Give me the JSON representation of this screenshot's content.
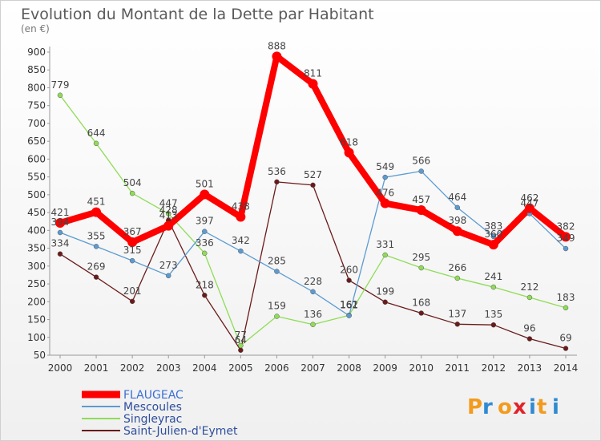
{
  "chart_data": {
    "type": "line",
    "title": "Evolution du Montant de la Dette par Habitant",
    "subtitle": "(en €)",
    "x": [
      "2000",
      "2001",
      "2002",
      "2003",
      "2004",
      "2005",
      "2006",
      "2007",
      "2008",
      "2009",
      "2010",
      "2011",
      "2012",
      "2013",
      "2014"
    ],
    "ylim": [
      50,
      900
    ],
    "yticks": [
      50,
      100,
      150,
      200,
      250,
      300,
      350,
      400,
      450,
      500,
      550,
      600,
      650,
      700,
      750,
      800,
      850,
      900
    ],
    "grid": false,
    "legend": "bottom-left",
    "series": [
      {
        "name": "FLAUGEAC",
        "color": "#ff0000",
        "values": [
          421,
          451,
          367,
          413,
          501,
          438,
          888,
          811,
          618,
          476,
          457,
          398,
          360,
          462,
          382
        ]
      },
      {
        "name": "Mescoules",
        "color": "#5c9bd1",
        "values": [
          394,
          355,
          315,
          273,
          397,
          342,
          285,
          228,
          161,
          549,
          566,
          464,
          383,
          447,
          349
        ]
      },
      {
        "name": "Singleyrac",
        "color": "#8fdc56",
        "values": [
          779,
          644,
          504,
          447,
          336,
          77,
          159,
          136,
          162,
          331,
          295,
          266,
          241,
          212,
          183
        ]
      },
      {
        "name": "Saint-Julien-d'Eymet",
        "color": "#6b1a1a",
        "values": [
          334,
          269,
          201,
          428,
          218,
          64,
          536,
          527,
          260,
          199,
          168,
          137,
          135,
          96,
          69
        ]
      }
    ]
  },
  "logo": {
    "text": "Proxiti"
  }
}
